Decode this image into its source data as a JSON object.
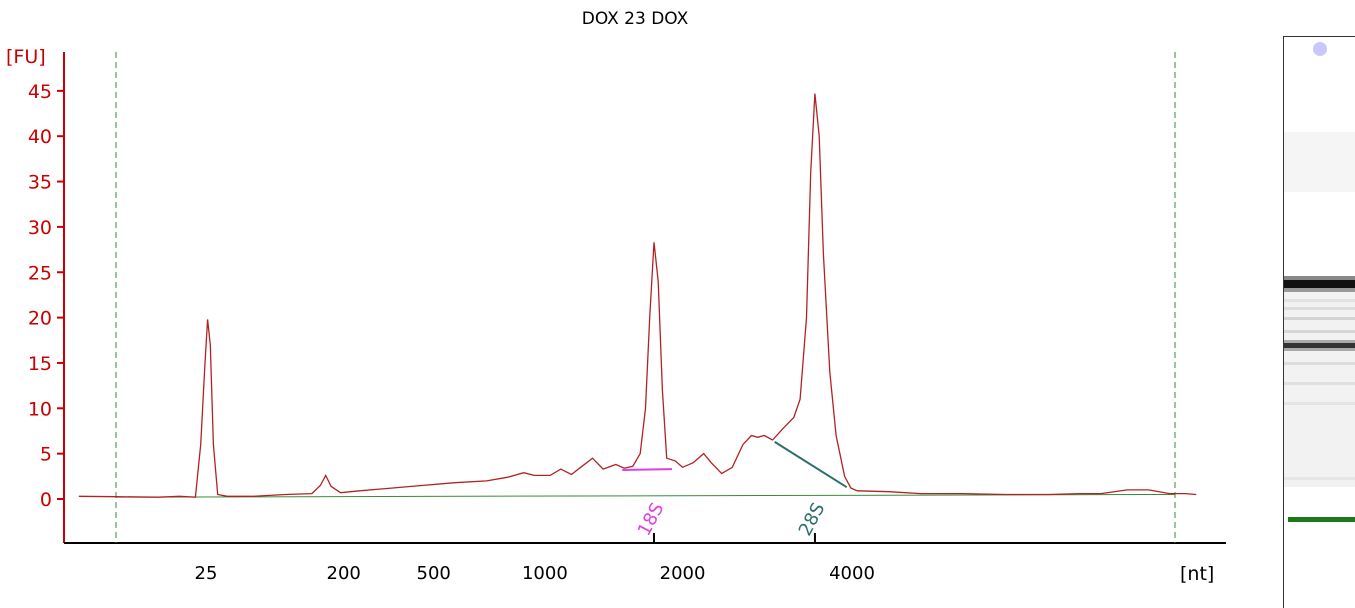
{
  "chart_data": {
    "type": "line",
    "title": "DOX 23 DOX",
    "ylabel": "[FU]",
    "xlabel": "[nt]",
    "ylim": [
      -4.5,
      49
    ],
    "yticks": [
      0,
      5,
      10,
      15,
      20,
      25,
      30,
      35,
      40,
      45
    ],
    "xtick_labels": [
      "25",
      "200",
      "500",
      "1000",
      "2000",
      "4000"
    ],
    "grid": false,
    "series": [
      {
        "color": "#b22222",
        "points": [
          [
            -0.35,
            0.3
          ],
          [
            0.0,
            0.25
          ],
          [
            0.4,
            0.2
          ],
          [
            0.6,
            0.3
          ],
          [
            0.75,
            0.2
          ],
          [
            0.8,
            6
          ],
          [
            0.84,
            15
          ],
          [
            0.865,
            19.8
          ],
          [
            0.89,
            17
          ],
          [
            0.92,
            6
          ],
          [
            0.96,
            0.5
          ],
          [
            1.05,
            0.3
          ],
          [
            1.3,
            0.3
          ],
          [
            1.6,
            0.5
          ],
          [
            1.85,
            0.6
          ],
          [
            1.93,
            1.5
          ],
          [
            1.98,
            2.6
          ],
          [
            2.03,
            1.4
          ],
          [
            2.12,
            0.7
          ],
          [
            2.3,
            0.9
          ],
          [
            2.6,
            1.2
          ],
          [
            2.9,
            1.5
          ],
          [
            3.2,
            1.8
          ],
          [
            3.5,
            2.0
          ],
          [
            3.7,
            2.4
          ],
          [
            3.85,
            2.9
          ],
          [
            3.95,
            2.6
          ],
          [
            4.1,
            2.6
          ],
          [
            4.2,
            3.3
          ],
          [
            4.3,
            2.7
          ],
          [
            4.4,
            3.6
          ],
          [
            4.5,
            4.5
          ],
          [
            4.6,
            3.3
          ],
          [
            4.72,
            3.8
          ],
          [
            4.8,
            3.4
          ],
          [
            4.88,
            3.6
          ],
          [
            4.95,
            5.0
          ],
          [
            5.0,
            10
          ],
          [
            5.04,
            20
          ],
          [
            5.08,
            28.3
          ],
          [
            5.12,
            24
          ],
          [
            5.16,
            12
          ],
          [
            5.2,
            4.5
          ],
          [
            5.28,
            4.2
          ],
          [
            5.35,
            3.5
          ],
          [
            5.45,
            4.0
          ],
          [
            5.55,
            5.0
          ],
          [
            5.62,
            4.0
          ],
          [
            5.72,
            2.8
          ],
          [
            5.82,
            3.5
          ],
          [
            5.92,
            6.0
          ],
          [
            6.0,
            7.0
          ],
          [
            6.06,
            6.8
          ],
          [
            6.12,
            7.0
          ],
          [
            6.2,
            6.5
          ],
          [
            6.3,
            7.8
          ],
          [
            6.4,
            9.0
          ],
          [
            6.46,
            11
          ],
          [
            6.52,
            20
          ],
          [
            6.56,
            36
          ],
          [
            6.6,
            44.7
          ],
          [
            6.64,
            40
          ],
          [
            6.68,
            27
          ],
          [
            6.74,
            14
          ],
          [
            6.8,
            7
          ],
          [
            6.88,
            2.5
          ],
          [
            6.94,
            1.2
          ],
          [
            7.0,
            0.9
          ],
          [
            7.3,
            0.8
          ],
          [
            7.6,
            0.6
          ],
          [
            8.0,
            0.6
          ],
          [
            8.4,
            0.5
          ],
          [
            8.8,
            0.5
          ],
          [
            9.1,
            0.6
          ],
          [
            9.3,
            0.6
          ],
          [
            9.55,
            1.0
          ],
          [
            9.75,
            1.0
          ],
          [
            9.95,
            0.6
          ],
          [
            10.1,
            0.6
          ],
          [
            10.2,
            0.5
          ]
        ]
      }
    ],
    "baseline": {
      "color": "#3a8a3a",
      "from": [
        0.0,
        0.2
      ],
      "to": [
        10.0,
        0.5
      ]
    },
    "peaks": [
      {
        "label": "18S",
        "color": "#e040e0",
        "segment": [
          [
            4.78,
            3.2
          ],
          [
            5.25,
            3.3
          ]
        ],
        "tick_x": 5.08
      },
      {
        "label": "28S",
        "color": "#2e6f6a",
        "segment": [
          [
            6.22,
            6.3
          ],
          [
            6.9,
            1.3
          ]
        ],
        "tick_x": 6.6
      }
    ],
    "marker_lines_x": [
      0.0,
      10.0
    ],
    "colors": {
      "axis": "#cc0000",
      "trace": "#b22222",
      "baseline": "#3a8a3a",
      "marker": "#3a8a3a"
    }
  }
}
